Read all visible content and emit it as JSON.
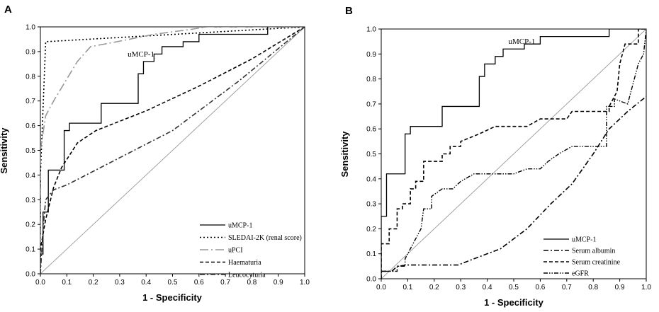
{
  "chart_data": [
    {
      "type": "line",
      "panel_label": "A",
      "xlabel": "1 - Specificity",
      "ylabel": "Sensitivity",
      "xlim": [
        0,
        1
      ],
      "ylim": [
        0,
        1
      ],
      "x_ticks": [
        "0.0",
        "0.1",
        "0.2",
        "0.3",
        "0.4",
        "0.5",
        "0.6",
        "0.7",
        "0.8",
        "0.9",
        "1.0"
      ],
      "y_ticks": [
        "0.0",
        "0.1",
        "0.2",
        "0.3",
        "0.4",
        "0.5",
        "0.6",
        "0.7",
        "0.8",
        "0.9",
        "1.0"
      ],
      "legend_position": "bottom-right",
      "annotation": {
        "text": "uMCP-1",
        "x": 0.33,
        "y": 0.88
      },
      "series": [
        {
          "name": "uMCP-1",
          "style": "solid",
          "color": "#000000",
          "points": [
            [
              0,
              0
            ],
            [
              0,
              0.08
            ],
            [
              0.01,
              0.08
            ],
            [
              0.01,
              0.25
            ],
            [
              0.03,
              0.25
            ],
            [
              0.03,
              0.42
            ],
            [
              0.09,
              0.42
            ],
            [
              0.09,
              0.58
            ],
            [
              0.11,
              0.58
            ],
            [
              0.11,
              0.61
            ],
            [
              0.23,
              0.61
            ],
            [
              0.23,
              0.69
            ],
            [
              0.37,
              0.69
            ],
            [
              0.37,
              0.81
            ],
            [
              0.39,
              0.81
            ],
            [
              0.39,
              0.86
            ],
            [
              0.43,
              0.86
            ],
            [
              0.43,
              0.89
            ],
            [
              0.46,
              0.89
            ],
            [
              0.46,
              0.92
            ],
            [
              0.54,
              0.92
            ],
            [
              0.54,
              0.94
            ],
            [
              0.6,
              0.94
            ],
            [
              0.6,
              0.97
            ],
            [
              0.86,
              0.97
            ],
            [
              0.86,
              1.0
            ],
            [
              1.0,
              1.0
            ]
          ]
        },
        {
          "name": "SLEDAI-2K (renal score)",
          "style": "dotted",
          "color": "#000000",
          "points": [
            [
              0,
              0
            ],
            [
              0,
              0.4
            ],
            [
              0.02,
              0.94
            ],
            [
              1.0,
              1.0
            ]
          ]
        },
        {
          "name": "uPCI",
          "style": "longdash-dot",
          "color": "#999999",
          "points": [
            [
              0,
              0
            ],
            [
              0,
              0.5
            ],
            [
              0.02,
              0.64
            ],
            [
              0.05,
              0.7
            ],
            [
              0.14,
              0.86
            ],
            [
              0.19,
              0.92
            ],
            [
              0.29,
              0.94
            ],
            [
              0.43,
              0.97
            ],
            [
              0.57,
              0.99
            ],
            [
              0.63,
              1.0
            ],
            [
              1.0,
              1.0
            ]
          ]
        },
        {
          "name": "Haematuria",
          "style": "dashed",
          "color": "#000000",
          "points": [
            [
              0,
              0
            ],
            [
              0,
              0.1
            ],
            [
              0.02,
              0.22
            ],
            [
              0.05,
              0.35
            ],
            [
              0.08,
              0.43
            ],
            [
              0.14,
              0.53
            ],
            [
              0.21,
              0.58
            ],
            [
              0.4,
              0.66
            ],
            [
              0.6,
              0.76
            ],
            [
              0.8,
              0.87
            ],
            [
              1.0,
              1.0
            ]
          ]
        },
        {
          "name": "Leucocyturia",
          "style": "dashdot",
          "color": "#333333",
          "points": [
            [
              0,
              0
            ],
            [
              0.01,
              0.18
            ],
            [
              0.02,
              0.3
            ],
            [
              0.05,
              0.34
            ],
            [
              0.1,
              0.36
            ],
            [
              0.3,
              0.47
            ],
            [
              0.5,
              0.58
            ],
            [
              0.75,
              0.78
            ],
            [
              1.0,
              1.0
            ]
          ]
        },
        {
          "name": "",
          "style": "reference",
          "color": "#999999",
          "points": [
            [
              0,
              0
            ],
            [
              1,
              1
            ]
          ]
        }
      ]
    },
    {
      "type": "line",
      "panel_label": "B",
      "xlabel": "1 - Specificity",
      "ylabel": "Sensitivity",
      "xlim": [
        0,
        1
      ],
      "ylim": [
        0,
        1
      ],
      "x_ticks": [
        "0.0",
        "0.1",
        "0.2",
        "0.3",
        "0.4",
        "0.5",
        "0.6",
        "0.7",
        "0.8",
        "0.9",
        "1.0"
      ],
      "y_ticks": [
        "0.0",
        "0.1",
        "0.2",
        "0.3",
        "0.4",
        "0.5",
        "0.6",
        "0.7",
        "0.8",
        "0.9",
        "1.0"
      ],
      "legend_position": "bottom-right",
      "annotation": {
        "text": "uMCP-1",
        "x": 0.48,
        "y": 0.94
      },
      "series": [
        {
          "name": "uMCP-1",
          "style": "solid",
          "color": "#000000",
          "points": [
            [
              0,
              0
            ],
            [
              0,
              0.25
            ],
            [
              0.02,
              0.25
            ],
            [
              0.02,
              0.42
            ],
            [
              0.09,
              0.42
            ],
            [
              0.09,
              0.58
            ],
            [
              0.11,
              0.58
            ],
            [
              0.11,
              0.61
            ],
            [
              0.23,
              0.61
            ],
            [
              0.23,
              0.69
            ],
            [
              0.37,
              0.69
            ],
            [
              0.37,
              0.81
            ],
            [
              0.39,
              0.81
            ],
            [
              0.39,
              0.86
            ],
            [
              0.43,
              0.86
            ],
            [
              0.43,
              0.89
            ],
            [
              0.46,
              0.89
            ],
            [
              0.46,
              0.92
            ],
            [
              0.54,
              0.92
            ],
            [
              0.54,
              0.94
            ],
            [
              0.6,
              0.94
            ],
            [
              0.6,
              0.97
            ],
            [
              0.86,
              0.97
            ],
            [
              0.86,
              1.0
            ],
            [
              1.0,
              1.0
            ]
          ]
        },
        {
          "name": "Serum albumin",
          "style": "dashdot",
          "color": "#000000",
          "points": [
            [
              0,
              0.03
            ],
            [
              0.04,
              0.03
            ],
            [
              0.06,
              0.05
            ],
            [
              0.1,
              0.055
            ],
            [
              0.29,
              0.055
            ],
            [
              0.35,
              0.08
            ],
            [
              0.45,
              0.12
            ],
            [
              0.55,
              0.2
            ],
            [
              0.64,
              0.3
            ],
            [
              0.72,
              0.38
            ],
            [
              0.8,
              0.5
            ],
            [
              0.86,
              0.6
            ],
            [
              0.93,
              0.67
            ],
            [
              1.0,
              0.73
            ]
          ]
        },
        {
          "name": "Serum creatinine",
          "style": "dashed",
          "color": "#000000",
          "points": [
            [
              0,
              0
            ],
            [
              0,
              0.14
            ],
            [
              0.03,
              0.14
            ],
            [
              0.03,
              0.2
            ],
            [
              0.06,
              0.2
            ],
            [
              0.06,
              0.28
            ],
            [
              0.08,
              0.28
            ],
            [
              0.08,
              0.3
            ],
            [
              0.11,
              0.3
            ],
            [
              0.11,
              0.36
            ],
            [
              0.13,
              0.36
            ],
            [
              0.13,
              0.39
            ],
            [
              0.16,
              0.39
            ],
            [
              0.16,
              0.47
            ],
            [
              0.23,
              0.47
            ],
            [
              0.23,
              0.5
            ],
            [
              0.26,
              0.5
            ],
            [
              0.26,
              0.53
            ],
            [
              0.3,
              0.53
            ],
            [
              0.3,
              0.55
            ],
            [
              0.37,
              0.58
            ],
            [
              0.43,
              0.61
            ],
            [
              0.55,
              0.61
            ],
            [
              0.6,
              0.64
            ],
            [
              0.7,
              0.64
            ],
            [
              0.72,
              0.67
            ],
            [
              0.86,
              0.67
            ],
            [
              0.86,
              0.69
            ],
            [
              0.89,
              0.75
            ],
            [
              0.9,
              0.86
            ],
            [
              0.92,
              0.94
            ],
            [
              0.94,
              0.94
            ],
            [
              0.97,
              0.94
            ],
            [
              0.97,
              1.0
            ],
            [
              1.0,
              1.0
            ]
          ]
        },
        {
          "name": "eGFR",
          "style": "dash-dot-dot",
          "color": "#000000",
          "points": [
            [
              0,
              0
            ],
            [
              0,
              0.03
            ],
            [
              0.06,
              0.03
            ],
            [
              0.06,
              0.05
            ],
            [
              0.09,
              0.05
            ],
            [
              0.09,
              0.08
            ],
            [
              0.1,
              0.1
            ],
            [
              0.12,
              0.14
            ],
            [
              0.15,
              0.2
            ],
            [
              0.16,
              0.28
            ],
            [
              0.19,
              0.28
            ],
            [
              0.19,
              0.33
            ],
            [
              0.23,
              0.36
            ],
            [
              0.27,
              0.36
            ],
            [
              0.3,
              0.39
            ],
            [
              0.35,
              0.42
            ],
            [
              0.5,
              0.42
            ],
            [
              0.55,
              0.44
            ],
            [
              0.6,
              0.44
            ],
            [
              0.63,
              0.47
            ],
            [
              0.67,
              0.5
            ],
            [
              0.72,
              0.53
            ],
            [
              0.85,
              0.53
            ],
            [
              0.85,
              0.69
            ],
            [
              0.88,
              0.69
            ],
            [
              0.88,
              0.72
            ],
            [
              0.93,
              0.7
            ],
            [
              0.95,
              0.78
            ],
            [
              0.97,
              0.86
            ],
            [
              0.99,
              0.9
            ],
            [
              1.0,
              1.0
            ]
          ]
        },
        {
          "name": "",
          "style": "reference",
          "color": "#999999",
          "points": [
            [
              0,
              0
            ],
            [
              1,
              1
            ]
          ]
        }
      ]
    }
  ]
}
